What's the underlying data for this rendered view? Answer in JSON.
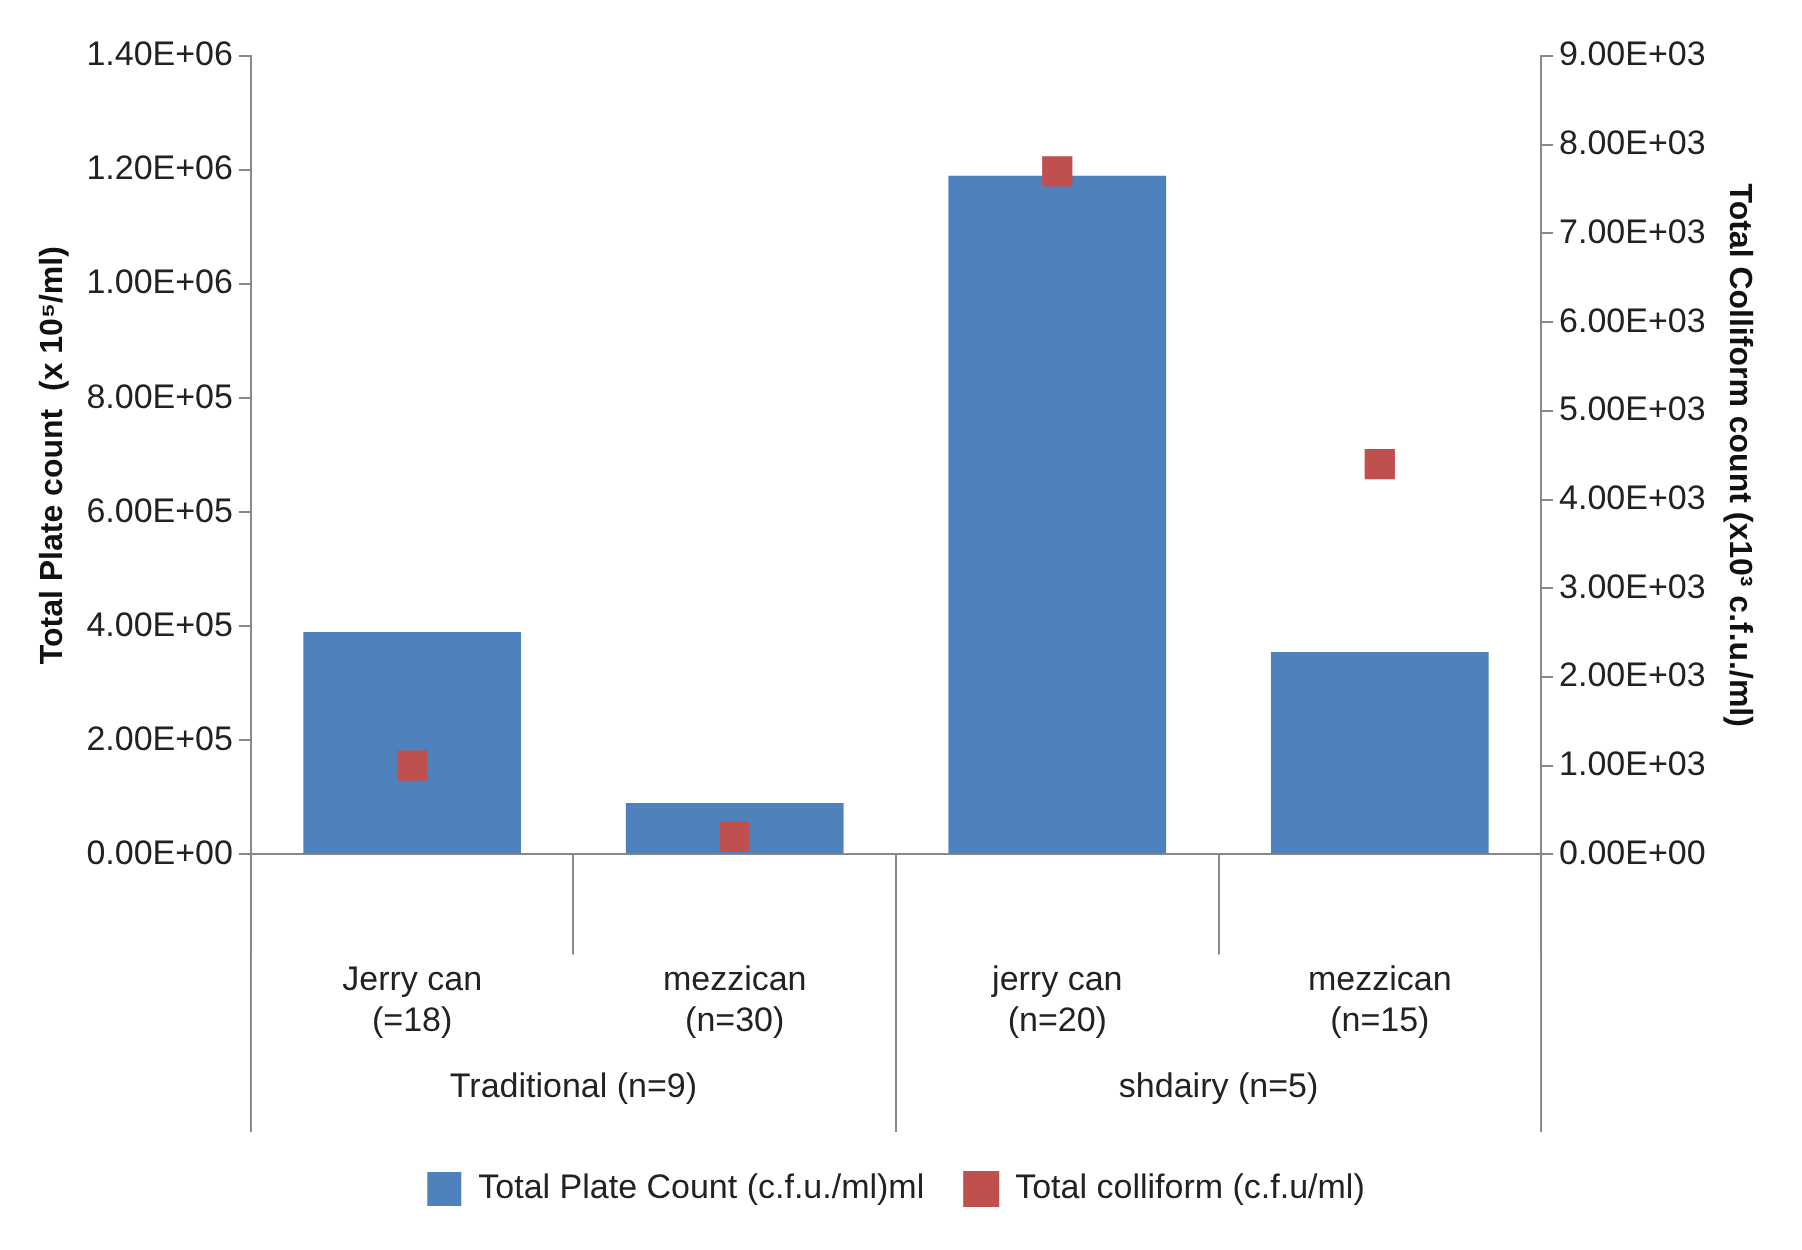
{
  "chart_data": {
    "type": "bar",
    "ylabel": "Total Plate count  (x 10⁵/ml)",
    "y2label": "Total Colliform count (x10³ c.f.u./ml)",
    "categories": [
      "Jerry can (=18)",
      "mezzican (n=30)",
      "jerry can (n=20)",
      "mezzican (n=15)"
    ],
    "annotations": [
      "Traditional (n=9)",
      "shdairy (n=5)"
    ],
    "series": [
      {
        "name": "Total Plate Count (c.f.u./ml)ml",
        "color": "#4f81bd",
        "values": [
          390000,
          90000,
          1190000,
          355000
        ]
      },
      {
        "name": "Total colliform (c.f.u/ml)",
        "type": "scatter",
        "axis": "y2",
        "color": "#c0504d",
        "values": [
          1000,
          200,
          7700,
          4400
        ]
      }
    ],
    "ylim": [
      0,
      1400000
    ],
    "yticks": [
      {
        "value": 0,
        "label": "0.00E+00"
      },
      {
        "value": 200000,
        "label": "2.00E+05"
      },
      {
        "value": 400000,
        "label": "4.00E+05"
      },
      {
        "value": 600000,
        "label": "6.00E+05"
      },
      {
        "value": 800000,
        "label": "8.00E+05"
      },
      {
        "value": 1000000,
        "label": "1.00E+06"
      },
      {
        "value": 1200000,
        "label": "1.20E+06"
      },
      {
        "value": 1400000,
        "label": "1.40E+06"
      }
    ],
    "y2lim": [
      0,
      9000
    ],
    "y2ticks": [
      {
        "value": 0,
        "label": "0.00E+00"
      },
      {
        "value": 1000,
        "label": "1.00E+03"
      },
      {
        "value": 2000,
        "label": "2.00E+03"
      },
      {
        "value": 3000,
        "label": "3.00E+03"
      },
      {
        "value": 4000,
        "label": "4.00E+03"
      },
      {
        "value": 5000,
        "label": "5.00E+03"
      },
      {
        "value": 6000,
        "label": "6.00E+03"
      },
      {
        "value": 7000,
        "label": "7.00E+03"
      },
      {
        "value": 8000,
        "label": "8.00E+03"
      },
      {
        "value": 9000,
        "label": "9.00E+03"
      }
    ],
    "grid": false,
    "legend": "bottom",
    "marker": "square"
  }
}
